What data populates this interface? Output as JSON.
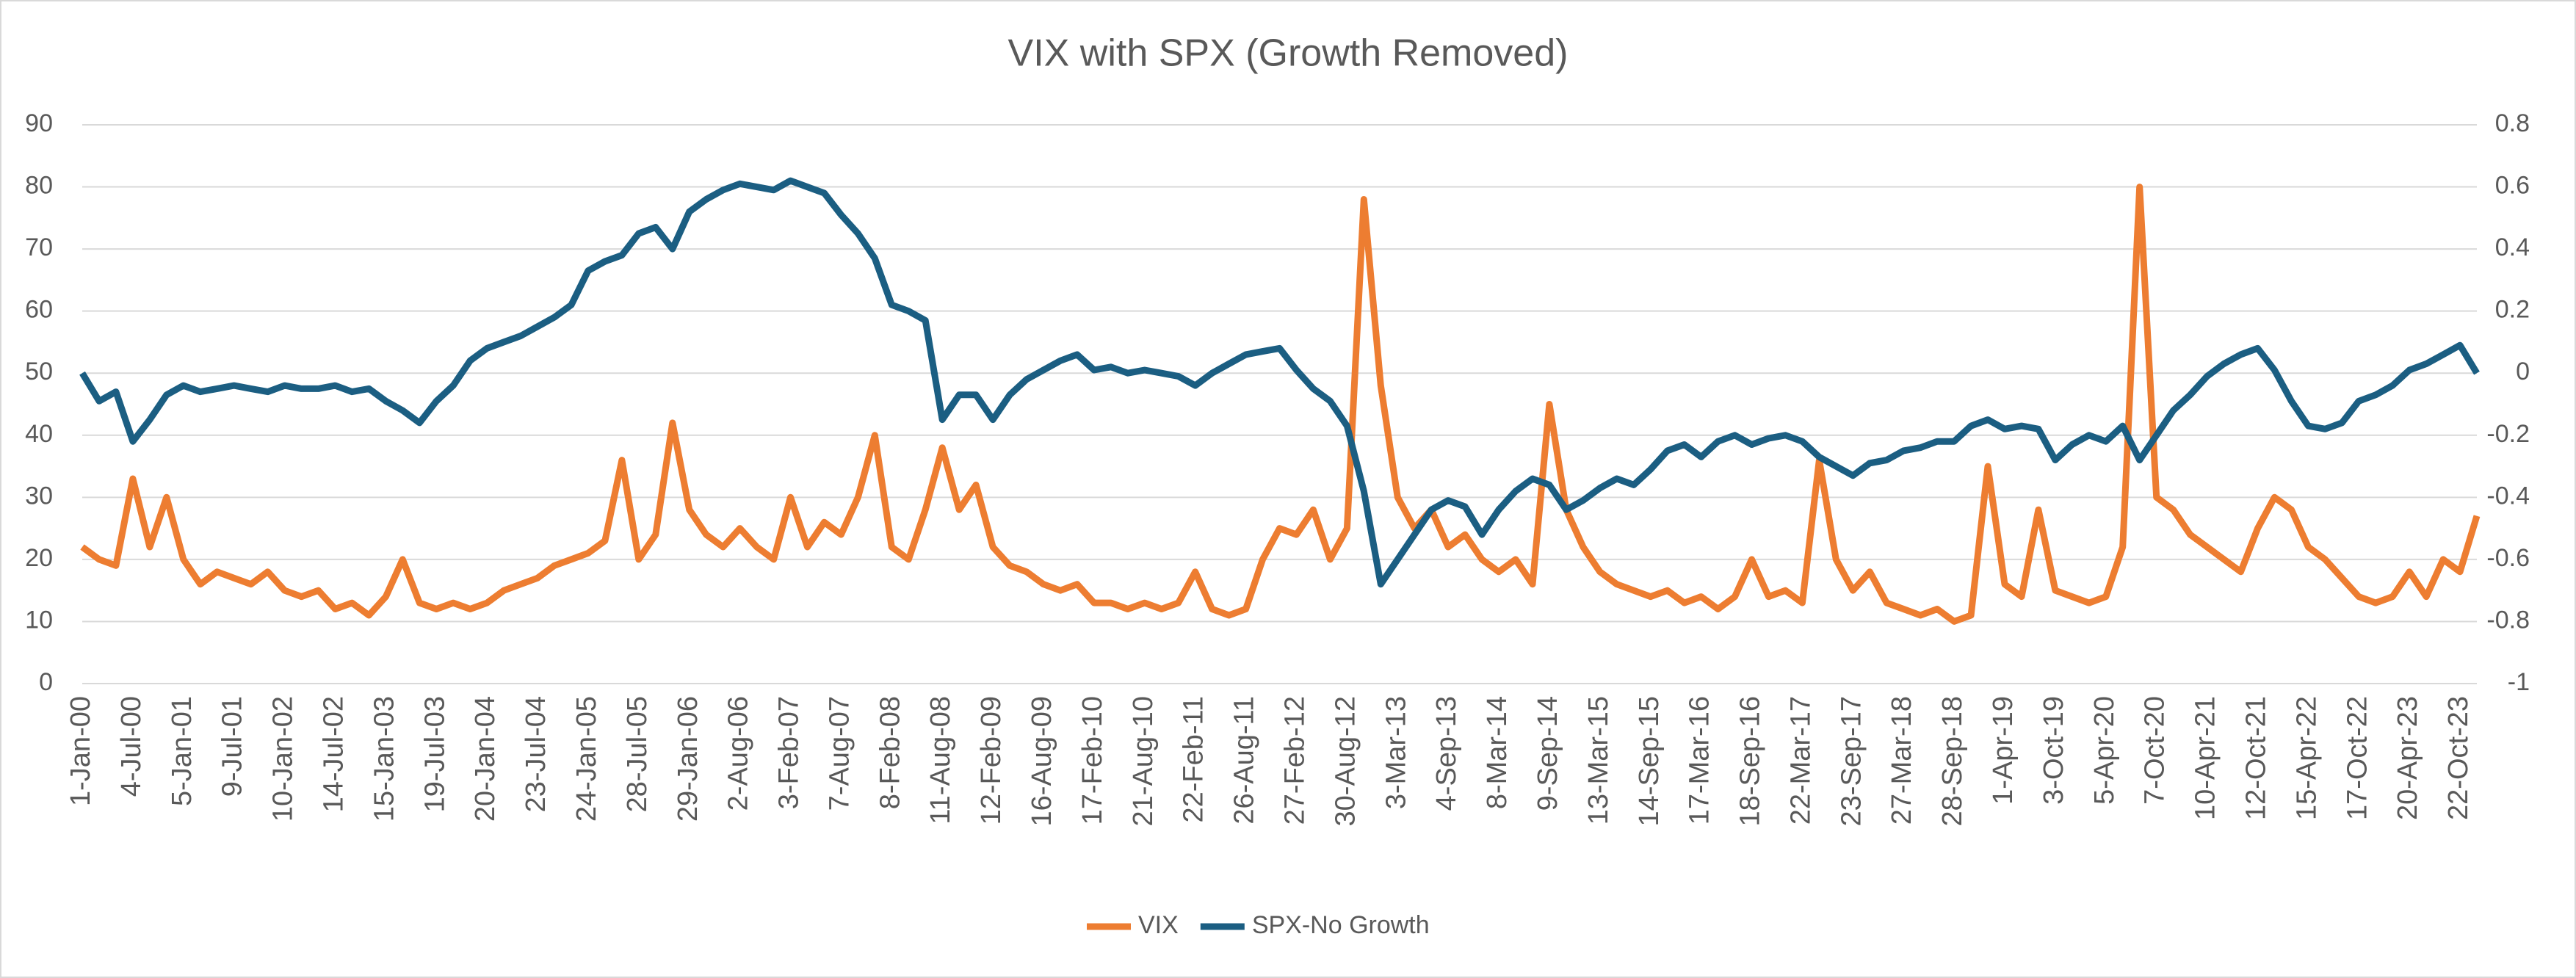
{
  "chart_data": {
    "type": "line",
    "title": "VIX with SPX (Growth Removed)",
    "categories": [
      "1-Jan-00",
      null,
      null,
      "4-Jul-00",
      null,
      null,
      "5-Jan-01",
      null,
      null,
      "9-Jul-01",
      null,
      null,
      "10-Jan-02",
      null,
      null,
      "14-Jul-02",
      null,
      null,
      "15-Jan-03",
      null,
      null,
      "19-Jul-03",
      null,
      null,
      "20-Jan-04",
      null,
      null,
      "23-Jul-04",
      null,
      null,
      "24-Jan-05",
      null,
      null,
      "28-Jul-05",
      null,
      null,
      "29-Jan-06",
      null,
      null,
      "2-Aug-06",
      null,
      null,
      "3-Feb-07",
      null,
      null,
      "7-Aug-07",
      null,
      null,
      "8-Feb-08",
      null,
      null,
      "11-Aug-08",
      null,
      null,
      "12-Feb-09",
      null,
      null,
      "16-Aug-09",
      null,
      null,
      "17-Feb-10",
      null,
      null,
      "21-Aug-10",
      null,
      null,
      "22-Feb-11",
      null,
      null,
      "26-Aug-11",
      null,
      null,
      "27-Feb-12",
      null,
      null,
      "30-Aug-12",
      null,
      null,
      "3-Mar-13",
      null,
      null,
      "4-Sep-13",
      null,
      null,
      "8-Mar-14",
      null,
      null,
      "9-Sep-14",
      null,
      null,
      "13-Mar-15",
      null,
      null,
      "14-Sep-15",
      null,
      null,
      "17-Mar-16",
      null,
      null,
      "18-Sep-16",
      null,
      null,
      "22-Mar-17",
      null,
      null,
      "23-Sep-17",
      null,
      null,
      "27-Mar-18",
      null,
      null,
      "28-Sep-18",
      null,
      null,
      "1-Apr-19",
      null,
      null,
      "3-Oct-19",
      null,
      null,
      "5-Apr-20",
      null,
      null,
      "7-Oct-20",
      null,
      null,
      "10-Apr-21",
      null,
      null,
      "12-Oct-21",
      null,
      null,
      "15-Apr-22",
      null,
      null,
      "17-Oct-22",
      null,
      null,
      "20-Apr-23",
      null,
      null,
      "22-Oct-23",
      null
    ],
    "series": [
      {
        "name": "VIX",
        "color": "#ed7d31",
        "values": [
          22,
          20,
          19,
          33,
          22,
          30,
          20,
          16,
          18,
          17,
          16,
          18,
          15,
          14,
          15,
          12,
          13,
          11,
          14,
          20,
          13,
          12,
          13,
          12,
          13,
          15,
          16,
          17,
          19,
          20,
          21,
          23,
          36,
          20,
          24,
          42,
          28,
          24,
          22,
          25,
          22,
          20,
          30,
          22,
          26,
          24,
          30,
          40,
          22,
          20,
          28,
          38,
          28,
          32,
          22,
          19,
          18,
          16,
          15,
          16,
          13,
          13,
          12,
          13,
          12,
          13,
          18,
          12,
          11,
          12,
          20,
          25,
          24,
          28,
          20,
          25,
          78,
          48,
          30,
          25,
          28,
          22,
          24,
          20,
          18,
          20,
          16,
          45,
          28,
          22,
          18,
          16,
          15,
          14,
          15,
          13,
          14,
          12,
          14,
          20,
          14,
          15,
          13,
          36,
          20,
          15,
          18,
          13,
          12,
          11,
          12,
          10,
          11,
          35,
          16,
          14,
          28,
          15,
          14,
          13,
          14,
          22,
          80,
          30,
          28,
          24,
          22,
          20,
          18,
          25,
          30,
          28,
          22,
          20,
          17,
          14,
          13,
          14,
          18,
          14,
          20,
          18,
          27
        ]
      },
      {
        "name": "SPX-No Growth",
        "color": "#1b5e82",
        "axis": "y2",
        "values": [
          0.0,
          -0.09,
          -0.06,
          -0.22,
          -0.15,
          -0.07,
          -0.04,
          -0.06,
          -0.05,
          -0.04,
          -0.05,
          -0.06,
          -0.04,
          -0.05,
          -0.05,
          -0.04,
          -0.06,
          -0.05,
          -0.09,
          -0.12,
          -0.16,
          -0.09,
          -0.04,
          0.04,
          0.08,
          0.1,
          0.12,
          0.15,
          0.18,
          0.22,
          0.33,
          0.36,
          0.38,
          0.45,
          0.47,
          0.4,
          0.52,
          0.56,
          0.59,
          0.61,
          0.6,
          0.59,
          0.62,
          0.6,
          0.58,
          0.51,
          0.45,
          0.37,
          0.22,
          0.2,
          0.17,
          -0.15,
          -0.07,
          -0.07,
          -0.15,
          -0.07,
          -0.02,
          0.01,
          0.04,
          0.06,
          0.01,
          0.02,
          0.0,
          0.01,
          0.0,
          -0.01,
          -0.04,
          0.0,
          0.03,
          0.06,
          0.07,
          0.08,
          0.01,
          -0.05,
          -0.09,
          -0.17,
          -0.38,
          -0.68,
          -0.6,
          -0.52,
          -0.44,
          -0.41,
          -0.43,
          -0.52,
          -0.44,
          -0.38,
          -0.34,
          -0.36,
          -0.44,
          -0.41,
          -0.37,
          -0.34,
          -0.36,
          -0.31,
          -0.25,
          -0.23,
          -0.27,
          -0.22,
          -0.2,
          -0.23,
          -0.21,
          -0.2,
          -0.22,
          -0.27,
          -0.3,
          -0.33,
          -0.29,
          -0.28,
          -0.25,
          -0.24,
          -0.22,
          -0.22,
          -0.17,
          -0.15,
          -0.18,
          -0.17,
          -0.18,
          -0.28,
          -0.23,
          -0.2,
          -0.22,
          -0.17,
          -0.28,
          -0.2,
          -0.12,
          -0.07,
          -0.01,
          0.03,
          0.06,
          0.08,
          0.01,
          -0.09,
          -0.17,
          -0.18,
          -0.16,
          -0.09,
          -0.07,
          -0.04,
          0.01,
          0.03,
          0.06,
          0.09,
          0.0
        ]
      }
    ],
    "ylim": [
      0,
      90
    ],
    "yticks": [
      0,
      10,
      20,
      30,
      40,
      50,
      60,
      70,
      80,
      90
    ],
    "y2lim": [
      -1,
      0.8
    ],
    "y2ticks": [
      -1,
      -0.8,
      -0.6,
      -0.4,
      -0.2,
      0,
      0.2,
      0.4,
      0.6,
      0.8
    ],
    "grid": true,
    "legend": "bottom"
  }
}
